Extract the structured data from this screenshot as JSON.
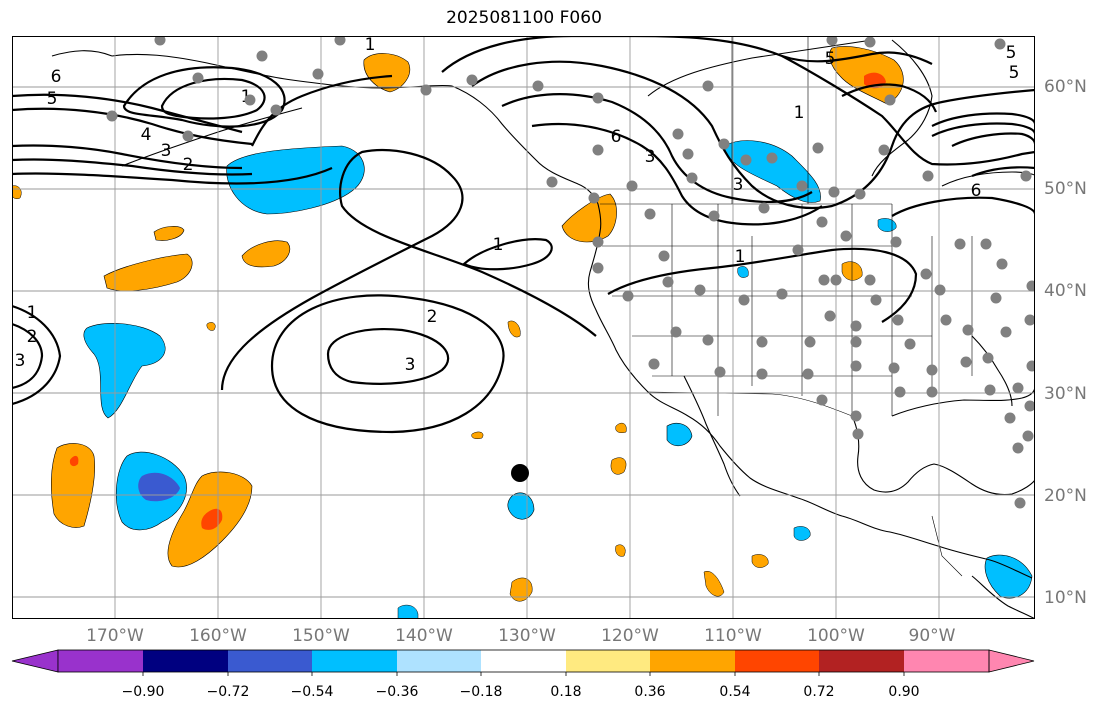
{
  "title": "2025081100 F060",
  "lon_labels": [
    "170°W",
    "160°W",
    "150°W",
    "140°W",
    "130°W",
    "120°W",
    "110°W",
    "100°W",
    "90°W"
  ],
  "lat_labels": [
    "60°N",
    "50°N",
    "40°N",
    "30°N",
    "20°N",
    "10°N"
  ],
  "contour_labels": [
    "6",
    "5",
    "4",
    "3",
    "2",
    "1",
    "1",
    "2",
    "3",
    "1",
    "3",
    "6",
    "3",
    "1",
    "1",
    "5",
    "5",
    "6",
    "5",
    "3",
    "2",
    "1"
  ],
  "colorbar": {
    "ticks": [
      "−0.90",
      "−0.72",
      "−0.54",
      "−0.36",
      "−0.18",
      "0.18",
      "0.36",
      "0.54",
      "0.72",
      "0.90"
    ],
    "colors": [
      "#9932cc",
      "#000080",
      "#3a5ad0",
      "#00bfff",
      "#aee2ff",
      "#ffffff",
      "#ffea80",
      "#ffa500",
      "#ff4500",
      "#b22222",
      "#ff86b0"
    ]
  },
  "colors": {
    "ocean": "#ffffff",
    "land_line": "#000000",
    "grid": "#9a9a9a",
    "station": "#808080"
  }
}
